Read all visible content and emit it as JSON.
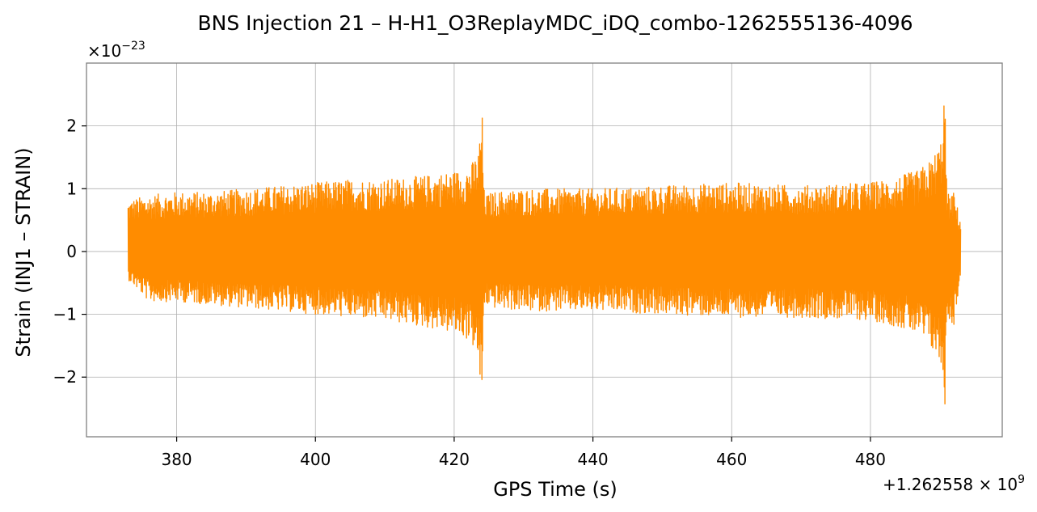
{
  "chart_data": {
    "type": "line",
    "title": "BNS Injection 21 – H-H1_O3ReplayMDC_iDQ_combo-1262555136-4096",
    "xlabel": "GPS Time (s)",
    "ylabel": "Strain (INJ1 – STRAIN)",
    "x_offset_label": {
      "text": "+1.262558 × 10",
      "exp": "9"
    },
    "y_multiplier_label": {
      "text": "×10",
      "exp": "−23"
    },
    "xlim": [
      367,
      499
    ],
    "ylim": [
      -2.95,
      3.0
    ],
    "x_ticks": [
      380,
      400,
      420,
      440,
      460,
      480
    ],
    "x_tick_labels": [
      "380",
      "400",
      "420",
      "440",
      "460",
      "480"
    ],
    "y_ticks": [
      -2,
      -1,
      0,
      1,
      2
    ],
    "y_tick_labels": [
      "−2",
      "−1",
      "0",
      "1",
      "2"
    ],
    "grid": true,
    "series": [
      {
        "color": "#ff8c00",
        "x_range": [
          373.0,
          493.0
        ],
        "envelope": {
          "x": [
            373,
            376,
            380,
            385,
            390,
            395,
            400,
            405,
            410,
            415,
            418,
            421,
            422.5,
            423.5,
            424.0,
            424.3,
            424.6,
            425.5,
            430,
            440,
            450,
            460,
            470,
            480,
            484,
            487,
            489,
            490.2,
            490.7,
            491.0,
            491.3,
            492,
            493
          ],
          "upper": [
            0.82,
            0.9,
            0.95,
            0.95,
            1.0,
            1.05,
            1.1,
            1.15,
            1.15,
            1.2,
            1.25,
            1.3,
            1.4,
            1.6,
            2.37,
            1.0,
            0.9,
            0.95,
            1.0,
            1.0,
            1.05,
            1.1,
            1.05,
            1.1,
            1.2,
            1.3,
            1.5,
            1.8,
            2.72,
            1.0,
            0.9,
            0.95,
            0.5
          ],
          "lower": [
            -0.45,
            -0.8,
            -0.8,
            -0.85,
            -0.9,
            -0.95,
            -1.0,
            -1.05,
            -1.1,
            -1.2,
            -1.25,
            -1.35,
            -1.45,
            -1.8,
            -2.42,
            -0.9,
            -0.85,
            -0.9,
            -0.95,
            -0.95,
            -1.0,
            -1.05,
            -1.05,
            -1.1,
            -1.2,
            -1.35,
            -1.6,
            -1.85,
            -2.65,
            -1.1,
            -1.1,
            -1.2,
            -0.4
          ]
        }
      }
    ]
  }
}
